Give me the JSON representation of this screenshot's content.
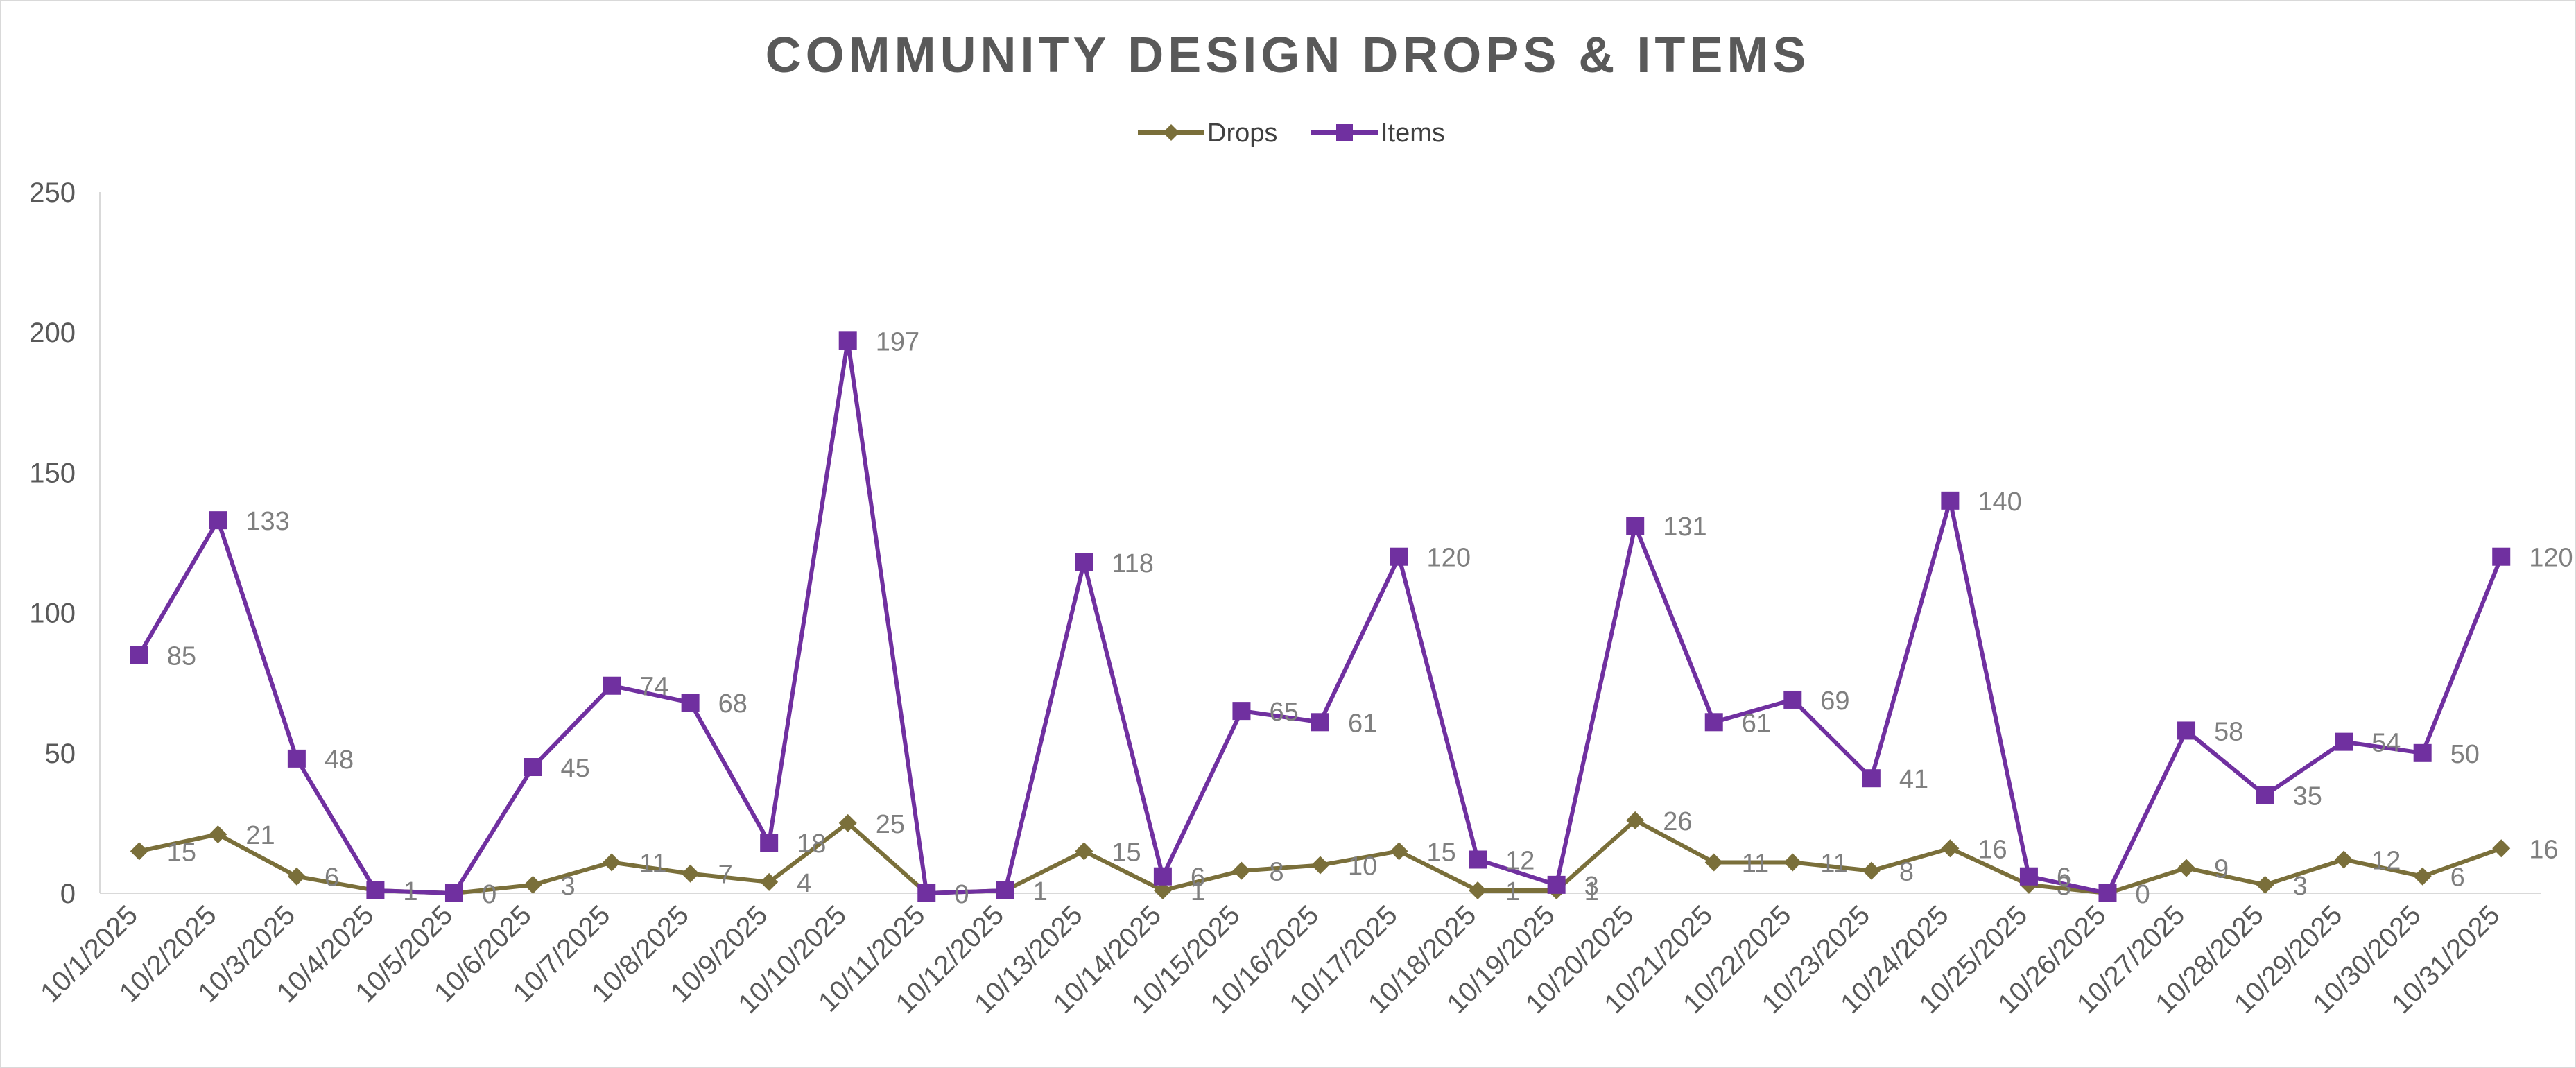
{
  "chart_data": {
    "type": "line",
    "title": "COMMUNITY DESIGN DROPS & ITEMS",
    "xlabel": "",
    "ylabel": "",
    "ylim": [
      0,
      250
    ],
    "y_ticks": [
      0,
      50,
      100,
      150,
      200,
      250
    ],
    "grid": false,
    "legend_position": "top-center",
    "categories": [
      "10/1/2025",
      "10/2/2025",
      "10/3/2025",
      "10/4/2025",
      "10/5/2025",
      "10/6/2025",
      "10/7/2025",
      "10/8/2025",
      "10/9/2025",
      "10/10/2025",
      "10/11/2025",
      "10/12/2025",
      "10/13/2025",
      "10/14/2025",
      "10/15/2025",
      "10/16/2025",
      "10/17/2025",
      "10/18/2025",
      "10/19/2025",
      "10/20/2025",
      "10/21/2025",
      "10/22/2025",
      "10/23/2025",
      "10/24/2025",
      "10/25/2025",
      "10/26/2025",
      "10/27/2025",
      "10/28/2025",
      "10/29/2025",
      "10/30/2025",
      "10/31/2025"
    ],
    "series": [
      {
        "name": "Drops",
        "color": "#7a6f3a",
        "marker": "diamond",
        "values": [
          15,
          21,
          6,
          1,
          0,
          3,
          11,
          7,
          4,
          25,
          0,
          1,
          15,
          1,
          8,
          10,
          15,
          1,
          1,
          26,
          11,
          11,
          8,
          16,
          3,
          0,
          9,
          3,
          12,
          6,
          16
        ]
      },
      {
        "name": "Items",
        "color": "#7030a0",
        "marker": "square",
        "values": [
          85,
          133,
          48,
          1,
          0,
          45,
          74,
          68,
          18,
          197,
          0,
          1,
          118,
          6,
          65,
          61,
          120,
          12,
          3,
          131,
          61,
          69,
          41,
          140,
          6,
          0,
          58,
          35,
          54,
          50,
          120
        ]
      }
    ]
  }
}
